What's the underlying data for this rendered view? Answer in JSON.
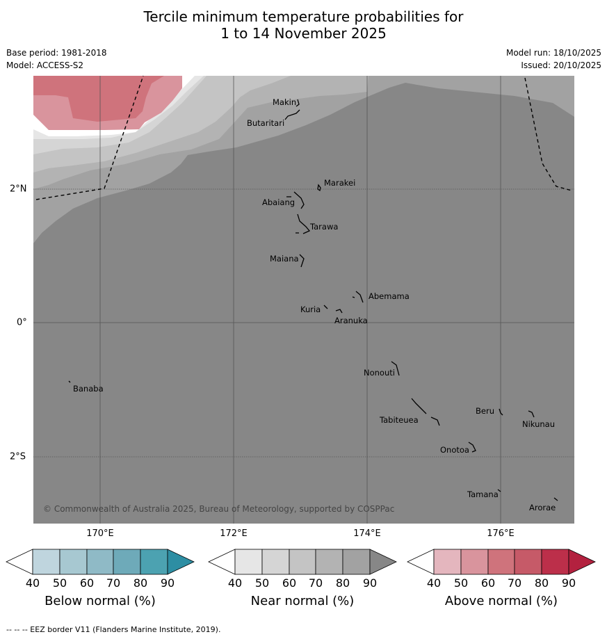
{
  "title_line1": "Tercile minimum temperature probabilities for",
  "title_line2": "1 to 14 November 2025",
  "base_period": "Base period: 1981-2018",
  "model": "Model: ACCESS-S2",
  "model_run": "Model run: 18/10/2025",
  "issued": "Issued: 20/10/2025",
  "copyright": "© Commonwealth of Australia 2025, Bureau of Meteorology, supported by COSPPac",
  "footer": "-- -- -- EEZ border V11 (Flanders Marine Institute, 2019).",
  "lon_labels": [
    "170°E",
    "172°E",
    "174°E",
    "176°E"
  ],
  "lat_labels": [
    "2°N",
    "0°",
    "2°S"
  ],
  "places": [
    {
      "name": "Makin",
      "lon": 172.97,
      "lat": 3.39
    },
    {
      "name": "Butaritari",
      "lon": 172.79,
      "lat": 3.07
    },
    {
      "name": "Marakei",
      "lon": 173.31,
      "lat": 2.0
    },
    {
      "name": "Abaiang",
      "lon": 173.0,
      "lat": 1.85
    },
    {
      "name": "Tarawa",
      "lon": 173.0,
      "lat": 1.42
    },
    {
      "name": "Maiana",
      "lon": 173.0,
      "lat": 0.95
    },
    {
      "name": "Abemama",
      "lon": 173.92,
      "lat": 0.4
    },
    {
      "name": "Kuria",
      "lon": 173.41,
      "lat": 0.23
    },
    {
      "name": "Aranuka",
      "lon": 173.6,
      "lat": 0.17
    },
    {
      "name": "Nonouti",
      "lon": 174.43,
      "lat": -0.64
    },
    {
      "name": "Banaba",
      "lon": 169.54,
      "lat": -0.86
    },
    {
      "name": "Tabiteuea",
      "lon": 174.83,
      "lat": -1.35
    },
    {
      "name": "Beru",
      "lon": 175.98,
      "lat": -1.32
    },
    {
      "name": "Nikunau",
      "lon": 176.46,
      "lat": -1.37
    },
    {
      "name": "Onotoa",
      "lon": 175.57,
      "lat": -1.84
    },
    {
      "name": "Tamana",
      "lon": 175.98,
      "lat": -2.5
    },
    {
      "name": "Arorae",
      "lon": 176.82,
      "lat": -2.65
    }
  ],
  "colorbars": [
    {
      "title": "Below normal (%)",
      "ticks": [
        "40",
        "50",
        "60",
        "70",
        "80",
        "90"
      ],
      "colors": [
        "#ffffff",
        "#bfd5de",
        "#a7c8d1",
        "#8fbac6",
        "#6eaab9",
        "#4ca2b1",
        "#2d8ea3"
      ]
    },
    {
      "title": "Near normal (%)",
      "ticks": [
        "40",
        "50",
        "60",
        "70",
        "80",
        "90"
      ],
      "colors": [
        "#ffffff",
        "#e6e6e6",
        "#d5d5d5",
        "#c4c4c4",
        "#b3b3b3",
        "#a2a2a2",
        "#878787"
      ]
    },
    {
      "title": "Above normal (%)",
      "ticks": [
        "40",
        "50",
        "60",
        "70",
        "80",
        "90"
      ],
      "colors": [
        "#ffffff",
        "#e4b6be",
        "#d9949d",
        "#cf737c",
        "#c65a68",
        "#bc2f4a",
        "#b3213f"
      ]
    }
  ],
  "legend_colors": {
    "near_normal_60_70": "#c4c4c4",
    "near_normal_70_80": "#b3b3b3",
    "near_normal_80_90": "#a2a2a2",
    "near_normal_90plus": "#878787",
    "above_normal_50_60": "#d9949d",
    "above_normal_60_70": "#cf737c"
  }
}
